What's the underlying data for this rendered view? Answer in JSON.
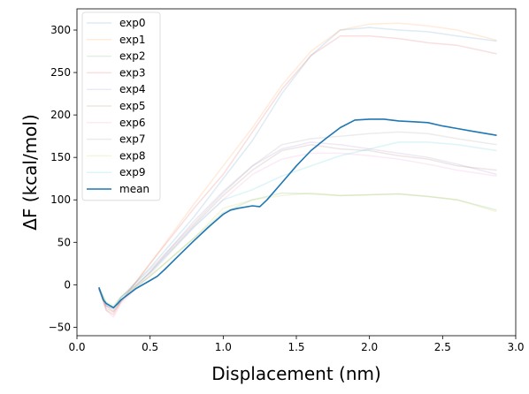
{
  "chart_data": {
    "type": "line",
    "title": "",
    "xlabel": "Displacement (nm)",
    "ylabel": "ΔF (kcal/mol)",
    "xlim": [
      0.0,
      3.0
    ],
    "ylim": [
      -60,
      325
    ],
    "xticks": [
      "0.0",
      "0.5",
      "1.0",
      "1.5",
      "2.0",
      "2.5",
      "3.0"
    ],
    "yticks": [
      "−50",
      "0",
      "50",
      "100",
      "150",
      "200",
      "250",
      "300"
    ],
    "xtick_values": [
      0.0,
      0.5,
      1.0,
      1.5,
      2.0,
      2.5,
      3.0
    ],
    "ytick_values": [
      -50,
      0,
      50,
      100,
      150,
      200,
      250,
      300
    ],
    "legend_placement": "top-left",
    "grid": false,
    "series": [
      {
        "name": "exp0",
        "color": "#1f77b4",
        "alpha": 0.15,
        "x": [
          0.15,
          0.2,
          0.25,
          0.3,
          0.5,
          0.8,
          1.0,
          1.2,
          1.4,
          1.6,
          1.8,
          2.0,
          2.2,
          2.4,
          2.6,
          2.87
        ],
        "y": [
          -5,
          -25,
          -28,
          -15,
          20,
          80,
          125,
          170,
          225,
          270,
          300,
          303,
          300,
          298,
          293,
          287
        ]
      },
      {
        "name": "exp1",
        "color": "#ff7f0e",
        "alpha": 0.15,
        "x": [
          0.15,
          0.2,
          0.25,
          0.3,
          0.5,
          0.8,
          1.0,
          1.2,
          1.4,
          1.6,
          1.8,
          2.0,
          2.2,
          2.4,
          2.6,
          2.87
        ],
        "y": [
          -5,
          -25,
          -32,
          -20,
          25,
          95,
          140,
          185,
          235,
          275,
          300,
          307,
          308,
          305,
          300,
          288
        ]
      },
      {
        "name": "exp2",
        "color": "#2ca02c",
        "alpha": 0.15,
        "x": [
          0.15,
          0.2,
          0.25,
          0.3,
          0.5,
          0.8,
          1.0,
          1.2,
          1.4,
          1.6,
          1.8,
          2.0,
          2.2,
          2.4,
          2.6,
          2.87
        ],
        "y": [
          -3,
          -22,
          -26,
          -18,
          10,
          55,
          85,
          100,
          108,
          107,
          105,
          106,
          107,
          104,
          100,
          88
        ]
      },
      {
        "name": "exp3",
        "color": "#d62728",
        "alpha": 0.15,
        "x": [
          0.15,
          0.2,
          0.25,
          0.3,
          0.5,
          0.8,
          1.0,
          1.2,
          1.4,
          1.6,
          1.8,
          2.0,
          2.2,
          2.4,
          2.6,
          2.87
        ],
        "y": [
          -4,
          -30,
          -35,
          -20,
          25,
          90,
          130,
          180,
          230,
          270,
          293,
          293,
          290,
          285,
          282,
          272
        ]
      },
      {
        "name": "exp4",
        "color": "#9467bd",
        "alpha": 0.15,
        "x": [
          0.15,
          0.2,
          0.25,
          0.3,
          0.5,
          0.8,
          1.0,
          1.2,
          1.4,
          1.6,
          1.8,
          2.0,
          2.2,
          2.4,
          2.6,
          2.87
        ],
        "y": [
          -5,
          -25,
          -30,
          -18,
          15,
          75,
          110,
          140,
          160,
          168,
          165,
          160,
          155,
          150,
          142,
          130
        ]
      },
      {
        "name": "exp5",
        "color": "#8c564b",
        "alpha": 0.15,
        "x": [
          0.15,
          0.2,
          0.25,
          0.3,
          0.5,
          0.8,
          1.0,
          1.2,
          1.4,
          1.6,
          1.8,
          2.0,
          2.2,
          2.4,
          2.6,
          2.87
        ],
        "y": [
          -5,
          -28,
          -32,
          -20,
          15,
          70,
          105,
          135,
          158,
          165,
          160,
          158,
          152,
          148,
          140,
          135
        ]
      },
      {
        "name": "exp6",
        "color": "#e377c2",
        "alpha": 0.15,
        "x": [
          0.15,
          0.2,
          0.25,
          0.3,
          0.5,
          0.8,
          1.0,
          1.2,
          1.4,
          1.6,
          1.8,
          2.0,
          2.2,
          2.4,
          2.6,
          2.87
        ],
        "y": [
          -5,
          -30,
          -38,
          -22,
          12,
          68,
          100,
          130,
          148,
          155,
          155,
          152,
          148,
          142,
          135,
          128
        ]
      },
      {
        "name": "exp7",
        "color": "#7f7f7f",
        "alpha": 0.15,
        "x": [
          0.15,
          0.2,
          0.25,
          0.3,
          0.5,
          0.8,
          1.0,
          1.2,
          1.4,
          1.6,
          1.8,
          2.0,
          2.2,
          2.4,
          2.6,
          2.87
        ],
        "y": [
          -4,
          -24,
          -28,
          -15,
          18,
          72,
          108,
          140,
          165,
          172,
          175,
          178,
          180,
          178,
          172,
          165
        ]
      },
      {
        "name": "exp8",
        "color": "#bcbd22",
        "alpha": 0.15,
        "x": [
          0.15,
          0.2,
          0.25,
          0.3,
          0.5,
          0.8,
          1.0,
          1.2,
          1.4,
          1.6,
          1.8,
          2.0,
          2.2,
          2.4,
          2.6,
          2.87
        ],
        "y": [
          -3,
          -20,
          -24,
          -14,
          10,
          55,
          90,
          100,
          105,
          108,
          105,
          106,
          107,
          104,
          100,
          86
        ]
      },
      {
        "name": "exp9",
        "color": "#17becf",
        "alpha": 0.15,
        "x": [
          0.15,
          0.2,
          0.25,
          0.3,
          0.5,
          0.8,
          1.0,
          1.2,
          1.4,
          1.6,
          1.8,
          2.0,
          2.2,
          2.4,
          2.6,
          2.87
        ],
        "y": [
          -4,
          -22,
          -26,
          -15,
          14,
          68,
          100,
          112,
          128,
          140,
          152,
          160,
          168,
          168,
          165,
          158
        ]
      },
      {
        "name": "mean",
        "color": "#1f77b4",
        "alpha": 1.0,
        "width": 1.6,
        "x": [
          0.15,
          0.18,
          0.2,
          0.23,
          0.25,
          0.28,
          0.3,
          0.4,
          0.5,
          0.55,
          0.6,
          0.7,
          0.8,
          0.9,
          1.0,
          1.05,
          1.1,
          1.2,
          1.25,
          1.3,
          1.4,
          1.5,
          1.6,
          1.7,
          1.8,
          1.9,
          2.0,
          2.1,
          2.2,
          2.3,
          2.4,
          2.5,
          2.6,
          2.7,
          2.87
        ],
        "y": [
          -3,
          -18,
          -22,
          -25,
          -27,
          -22,
          -18,
          -5,
          5,
          10,
          18,
          35,
          52,
          68,
          83,
          88,
          90,
          93,
          92,
          100,
          120,
          140,
          158,
          172,
          185,
          194,
          195,
          195,
          193,
          192,
          191,
          187,
          184,
          181,
          176
        ]
      }
    ]
  }
}
